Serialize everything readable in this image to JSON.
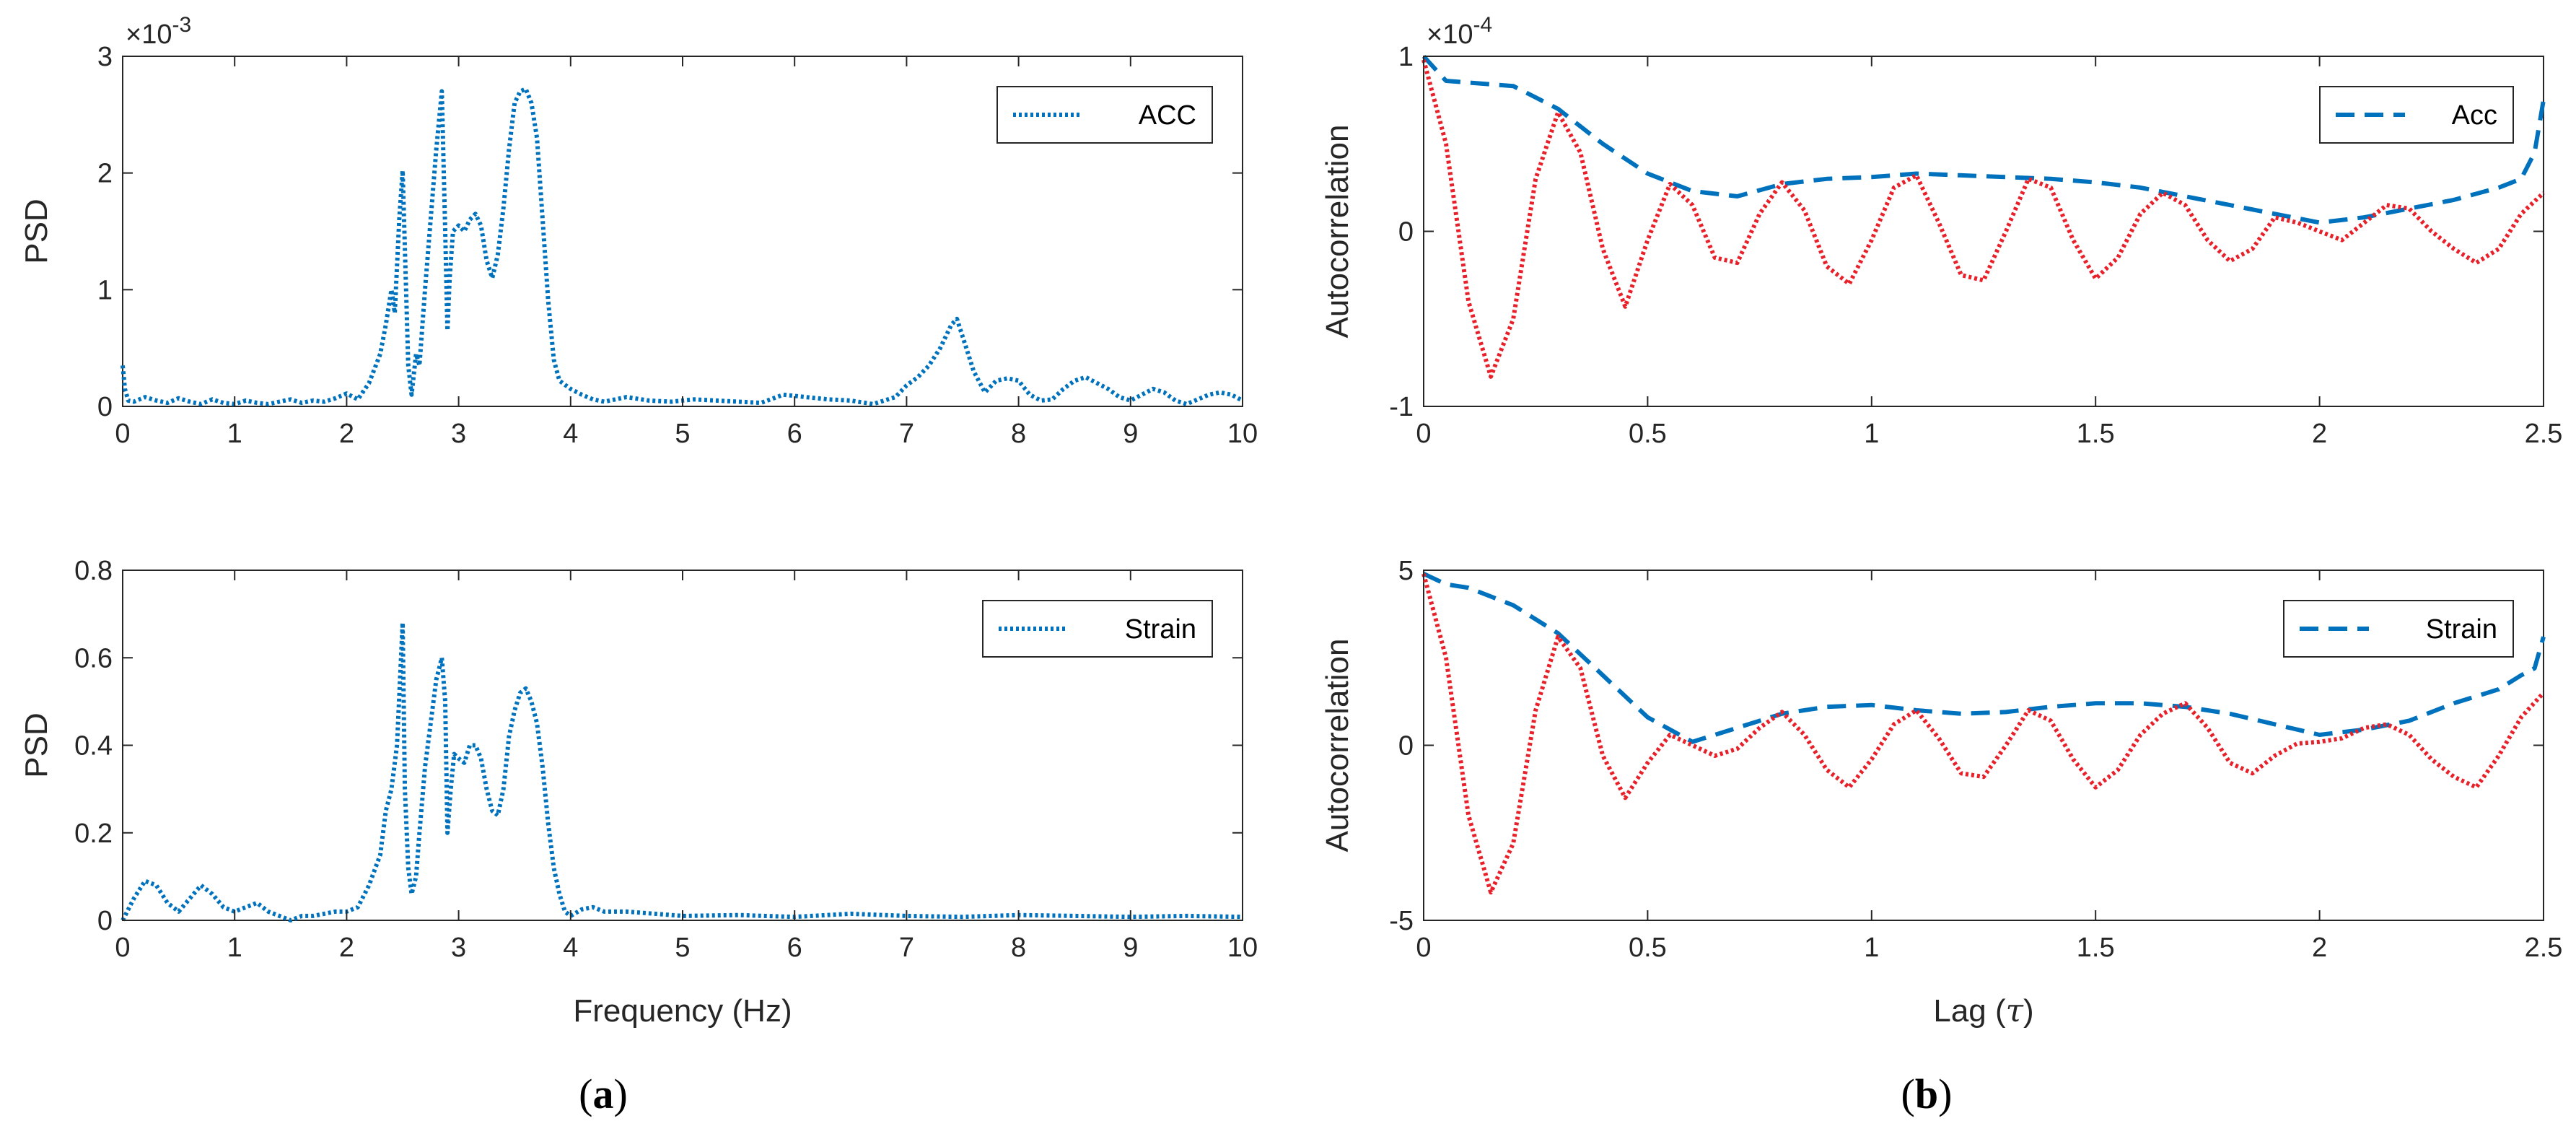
{
  "chart_data": [
    {
      "id": "psd-acc",
      "type": "line",
      "ylabel": "PSD",
      "xlabel": "",
      "xlim": [
        0,
        10
      ],
      "ylim": [
        0,
        3
      ],
      "xticks": [
        "0",
        "1",
        "2",
        "3",
        "4",
        "5",
        "6",
        "7",
        "8",
        "9",
        "10"
      ],
      "yticks": [
        "0",
        "1",
        "2",
        "3"
      ],
      "exponent_label": "×10^-3",
      "exponent_base": "×10",
      "exponent_power": "-3",
      "legend_position": "top-right",
      "series": [
        {
          "name": "ACC",
          "color": "#0072BD",
          "style": "dotted",
          "x": [
            0,
            0.02,
            0.05,
            0.1,
            0.2,
            0.3,
            0.4,
            0.5,
            0.6,
            0.7,
            0.8,
            0.9,
            1.0,
            1.1,
            1.2,
            1.3,
            1.4,
            1.5,
            1.6,
            1.7,
            1.8,
            1.9,
            2.0,
            2.1,
            2.2,
            2.3,
            2.35,
            2.4,
            2.43,
            2.47,
            2.5,
            2.55,
            2.58,
            2.62,
            2.65,
            2.7,
            2.75,
            2.8,
            2.85,
            2.88,
            2.9,
            2.92,
            2.95,
            3.0,
            3.05,
            3.1,
            3.15,
            3.2,
            3.25,
            3.3,
            3.35,
            3.4,
            3.45,
            3.5,
            3.55,
            3.6,
            3.65,
            3.7,
            3.75,
            3.8,
            3.85,
            3.9,
            4.0,
            4.1,
            4.2,
            4.3,
            4.5,
            4.7,
            4.9,
            5.1,
            5.3,
            5.5,
            5.7,
            5.9,
            6.1,
            6.3,
            6.5,
            6.7,
            6.9,
            7.0,
            7.1,
            7.2,
            7.3,
            7.4,
            7.45,
            7.5,
            7.6,
            7.7,
            7.8,
            7.9,
            8.0,
            8.1,
            8.2,
            8.3,
            8.4,
            8.5,
            8.6,
            8.7,
            8.8,
            8.9,
            9.0,
            9.1,
            9.2,
            9.3,
            9.4,
            9.5,
            9.6,
            9.7,
            9.8,
            9.9,
            10.0
          ],
          "y": [
            0.35,
            0.15,
            0.05,
            0.04,
            0.08,
            0.05,
            0.03,
            0.07,
            0.04,
            0.02,
            0.06,
            0.03,
            0.02,
            0.05,
            0.03,
            0.02,
            0.04,
            0.06,
            0.03,
            0.05,
            0.04,
            0.07,
            0.11,
            0.06,
            0.2,
            0.45,
            0.7,
            1.0,
            0.8,
            1.6,
            2.02,
            0.35,
            0.1,
            0.45,
            0.35,
            1.0,
            1.6,
            2.2,
            2.7,
            1.5,
            0.65,
            1.1,
            1.5,
            1.55,
            1.5,
            1.6,
            1.65,
            1.55,
            1.25,
            1.1,
            1.3,
            1.7,
            2.2,
            2.6,
            2.7,
            2.72,
            2.6,
            2.3,
            1.6,
            0.9,
            0.4,
            0.22,
            0.15,
            0.1,
            0.06,
            0.04,
            0.08,
            0.05,
            0.04,
            0.06,
            0.05,
            0.04,
            0.03,
            0.1,
            0.08,
            0.06,
            0.05,
            0.02,
            0.08,
            0.18,
            0.25,
            0.35,
            0.5,
            0.7,
            0.75,
            0.6,
            0.3,
            0.12,
            0.22,
            0.24,
            0.22,
            0.1,
            0.05,
            0.06,
            0.15,
            0.22,
            0.25,
            0.2,
            0.15,
            0.08,
            0.05,
            0.1,
            0.15,
            0.12,
            0.05,
            0.02,
            0.06,
            0.1,
            0.12,
            0.1,
            0.05
          ]
        }
      ]
    },
    {
      "id": "psd-strain",
      "type": "line",
      "ylabel": "PSD",
      "xlabel": "Frequency (Hz)",
      "xlim": [
        0,
        10
      ],
      "ylim": [
        0,
        0.8
      ],
      "xticks": [
        "0",
        "1",
        "2",
        "3",
        "4",
        "5",
        "6",
        "7",
        "8",
        "9",
        "10"
      ],
      "yticks": [
        "0",
        "0.2",
        "0.4",
        "0.6",
        "0.8"
      ],
      "legend_position": "top-right",
      "series": [
        {
          "name": "Strain",
          "color": "#0072BD",
          "style": "dotted",
          "x": [
            0,
            0.1,
            0.2,
            0.3,
            0.4,
            0.5,
            0.6,
            0.7,
            0.8,
            0.9,
            1.0,
            1.1,
            1.2,
            1.3,
            1.4,
            1.5,
            1.6,
            1.7,
            1.8,
            1.9,
            2.0,
            2.1,
            2.2,
            2.3,
            2.35,
            2.4,
            2.45,
            2.5,
            2.52,
            2.55,
            2.58,
            2.62,
            2.65,
            2.7,
            2.75,
            2.8,
            2.85,
            2.88,
            2.9,
            2.93,
            2.96,
            3.0,
            3.05,
            3.1,
            3.15,
            3.2,
            3.25,
            3.3,
            3.35,
            3.4,
            3.45,
            3.5,
            3.55,
            3.6,
            3.65,
            3.7,
            3.75,
            3.8,
            3.85,
            3.9,
            3.95,
            4.0,
            4.1,
            4.2,
            4.3,
            4.5,
            5.0,
            5.5,
            6.0,
            6.5,
            7.0,
            7.5,
            8.0,
            8.5,
            9.0,
            9.5,
            10.0
          ],
          "y": [
            0.0,
            0.05,
            0.09,
            0.08,
            0.04,
            0.02,
            0.05,
            0.08,
            0.06,
            0.03,
            0.02,
            0.03,
            0.04,
            0.02,
            0.01,
            0.0,
            0.01,
            0.01,
            0.015,
            0.02,
            0.02,
            0.03,
            0.08,
            0.15,
            0.25,
            0.3,
            0.4,
            0.68,
            0.3,
            0.12,
            0.06,
            0.1,
            0.2,
            0.35,
            0.45,
            0.55,
            0.6,
            0.5,
            0.2,
            0.3,
            0.38,
            0.37,
            0.36,
            0.4,
            0.4,
            0.37,
            0.3,
            0.25,
            0.24,
            0.3,
            0.42,
            0.48,
            0.52,
            0.53,
            0.5,
            0.45,
            0.35,
            0.22,
            0.12,
            0.06,
            0.02,
            0.01,
            0.025,
            0.03,
            0.02,
            0.02,
            0.01,
            0.012,
            0.008,
            0.015,
            0.01,
            0.008,
            0.012,
            0.01,
            0.008,
            0.01,
            0.008
          ]
        }
      ]
    },
    {
      "id": "autocorr-acc",
      "type": "line",
      "ylabel": "Autocorrelation",
      "xlabel": "",
      "xlim": [
        0,
        2.5
      ],
      "ylim": [
        -1,
        1
      ],
      "xticks": [
        "0",
        "0.5",
        "1",
        "1.5",
        "2",
        "2.5"
      ],
      "yticks": [
        "-1",
        "0",
        "1"
      ],
      "exponent_label": "×10^-4",
      "exponent_base": "×10",
      "exponent_power": "-4",
      "legend_position": "top-right",
      "series": [
        {
          "name": "Acc",
          "color": "#0072BD",
          "style": "dashed",
          "x": [
            0,
            0.05,
            0.1,
            0.2,
            0.3,
            0.4,
            0.5,
            0.6,
            0.7,
            0.8,
            0.9,
            1.0,
            1.1,
            1.2,
            1.3,
            1.4,
            1.5,
            1.6,
            1.7,
            1.8,
            1.9,
            2.0,
            2.1,
            2.2,
            2.3,
            2.4,
            2.45,
            2.48,
            2.5
          ],
          "y": [
            1.0,
            0.86,
            0.85,
            0.83,
            0.7,
            0.5,
            0.33,
            0.23,
            0.2,
            0.27,
            0.3,
            0.31,
            0.33,
            0.32,
            0.31,
            0.3,
            0.28,
            0.25,
            0.2,
            0.15,
            0.1,
            0.05,
            0.08,
            0.13,
            0.18,
            0.25,
            0.3,
            0.45,
            0.75
          ]
        },
        {
          "name": "",
          "color": "#E8202A",
          "style": "dotted",
          "x": [
            0,
            0.05,
            0.1,
            0.15,
            0.2,
            0.25,
            0.3,
            0.35,
            0.4,
            0.45,
            0.5,
            0.55,
            0.6,
            0.65,
            0.7,
            0.75,
            0.8,
            0.85,
            0.9,
            0.95,
            1.0,
            1.05,
            1.1,
            1.15,
            1.2,
            1.25,
            1.3,
            1.35,
            1.4,
            1.45,
            1.5,
            1.55,
            1.6,
            1.65,
            1.7,
            1.75,
            1.8,
            1.85,
            1.9,
            1.95,
            2.0,
            2.05,
            2.1,
            2.15,
            2.2,
            2.25,
            2.3,
            2.35,
            2.4,
            2.45,
            2.5
          ],
          "y": [
            0.98,
            0.5,
            -0.4,
            -0.83,
            -0.5,
            0.3,
            0.68,
            0.45,
            -0.1,
            -0.43,
            -0.05,
            0.27,
            0.15,
            -0.15,
            -0.18,
            0.1,
            0.28,
            0.12,
            -0.2,
            -0.3,
            -0.05,
            0.25,
            0.32,
            0.05,
            -0.25,
            -0.28,
            0.0,
            0.3,
            0.25,
            -0.05,
            -0.27,
            -0.15,
            0.1,
            0.22,
            0.15,
            -0.05,
            -0.17,
            -0.1,
            0.08,
            0.05,
            0.0,
            -0.05,
            0.05,
            0.15,
            0.13,
            0.0,
            -0.1,
            -0.18,
            -0.1,
            0.1,
            0.22
          ]
        }
      ]
    },
    {
      "id": "autocorr-strain",
      "type": "line",
      "ylabel": "Autocorrelation",
      "xlabel": "Lag (τ)",
      "xlim": [
        0,
        2.5
      ],
      "ylim": [
        -5,
        5
      ],
      "xticks": [
        "0",
        "0.5",
        "1",
        "1.5",
        "2",
        "2.5"
      ],
      "yticks": [
        "-5",
        "0",
        "5"
      ],
      "legend_position": "top-right",
      "series": [
        {
          "name": "Strain",
          "color": "#0072BD",
          "style": "dashed",
          "x": [
            0,
            0.05,
            0.1,
            0.2,
            0.3,
            0.4,
            0.5,
            0.6,
            0.7,
            0.8,
            0.9,
            1.0,
            1.1,
            1.2,
            1.3,
            1.4,
            1.5,
            1.6,
            1.7,
            1.8,
            1.9,
            2.0,
            2.1,
            2.2,
            2.3,
            2.4,
            2.45,
            2.48,
            2.5
          ],
          "y": [
            4.9,
            4.6,
            4.5,
            4.0,
            3.2,
            2.0,
            0.8,
            0.1,
            0.5,
            0.9,
            1.1,
            1.15,
            1.0,
            0.9,
            0.95,
            1.1,
            1.2,
            1.2,
            1.1,
            0.9,
            0.6,
            0.3,
            0.45,
            0.7,
            1.2,
            1.6,
            2.0,
            2.2,
            3.1
          ]
        },
        {
          "name": "",
          "color": "#E8202A",
          "style": "dotted",
          "x": [
            0,
            0.05,
            0.1,
            0.15,
            0.2,
            0.25,
            0.3,
            0.35,
            0.4,
            0.45,
            0.5,
            0.55,
            0.6,
            0.65,
            0.7,
            0.75,
            0.8,
            0.85,
            0.9,
            0.95,
            1.0,
            1.05,
            1.1,
            1.15,
            1.2,
            1.25,
            1.3,
            1.35,
            1.4,
            1.45,
            1.5,
            1.55,
            1.6,
            1.65,
            1.7,
            1.75,
            1.8,
            1.85,
            1.9,
            1.95,
            2.0,
            2.05,
            2.1,
            2.15,
            2.2,
            2.25,
            2.3,
            2.35,
            2.4,
            2.45,
            2.5
          ],
          "y": [
            4.9,
            2.5,
            -2.0,
            -4.2,
            -2.8,
            1.0,
            3.1,
            2.2,
            -0.3,
            -1.5,
            -0.5,
            0.3,
            0.0,
            -0.3,
            -0.1,
            0.5,
            0.95,
            0.3,
            -0.7,
            -1.2,
            -0.4,
            0.6,
            1.0,
            0.2,
            -0.8,
            -0.9,
            0.0,
            1.0,
            0.7,
            -0.4,
            -1.2,
            -0.7,
            0.3,
            0.9,
            1.2,
            0.5,
            -0.5,
            -0.8,
            -0.3,
            0.05,
            0.1,
            0.2,
            0.5,
            0.6,
            0.3,
            -0.4,
            -0.9,
            -1.2,
            -0.3,
            0.8,
            1.5
          ]
        }
      ]
    }
  ],
  "captions": [
    {
      "label": "a"
    },
    {
      "label": "b"
    }
  ]
}
